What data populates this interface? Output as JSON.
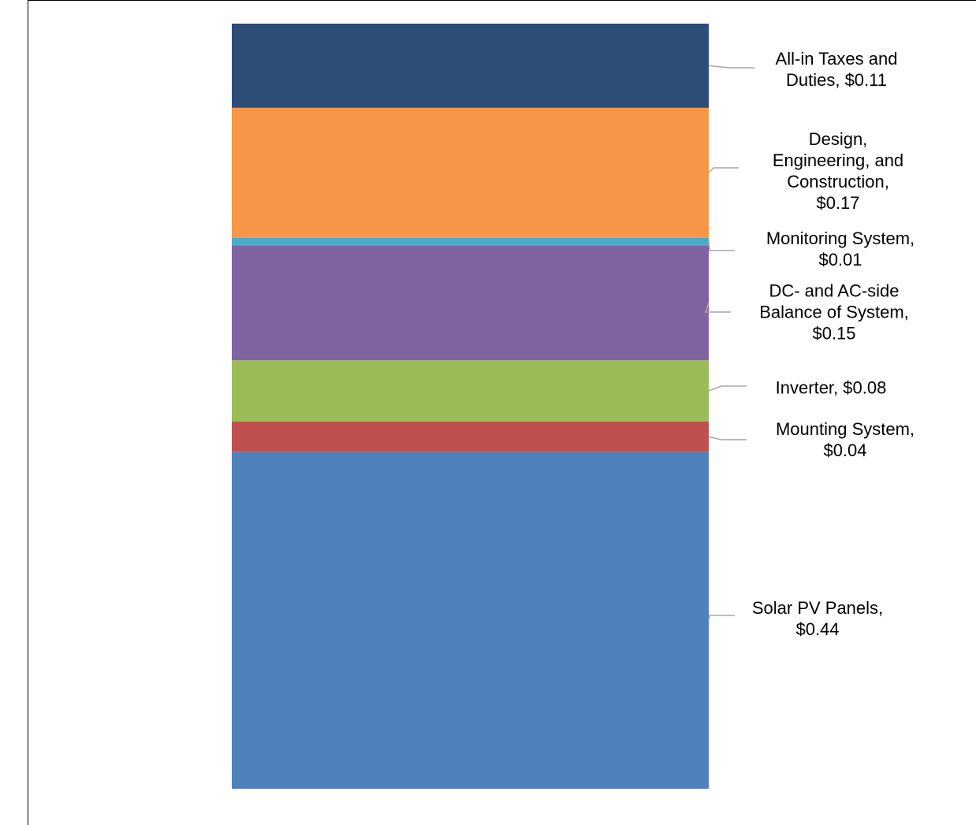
{
  "chart_data": {
    "type": "bar",
    "stacked": true,
    "title": "",
    "xlabel": "",
    "ylabel": "",
    "categories": [
      ""
    ],
    "series": [
      {
        "name": "Solar PV Panels",
        "label_lines": [
          "Solar PV Panels,",
          "$0.44"
        ],
        "value": 0.44,
        "color": "#4F81BD"
      },
      {
        "name": "Mounting System",
        "label_lines": [
          "Mounting System,",
          "$0.04"
        ],
        "value": 0.04,
        "color": "#C0504D"
      },
      {
        "name": "Inverter",
        "label_lines": [
          "Inverter,  $0.08"
        ],
        "value": 0.08,
        "color": "#9BBB59"
      },
      {
        "name": "DC- and AC-side Balance of System",
        "label_lines": [
          "DC- and AC-side",
          "Balance of System,",
          "$0.15"
        ],
        "value": 0.15,
        "color": "#8064A2"
      },
      {
        "name": "Monitoring System",
        "label_lines": [
          "Monitoring System,",
          "$0.01"
        ],
        "value": 0.01,
        "color": "#4BACC6"
      },
      {
        "name": "Design, Engineering, and Construction",
        "label_lines": [
          "Design,",
          "Engineering, and",
          "Construction,",
          "$0.17"
        ],
        "value": 0.17,
        "color": "#F79646"
      },
      {
        "name": "All-in Taxes and Duties",
        "label_lines": [
          "All-in Taxes and",
          "Duties,  $0.11"
        ],
        "value": 0.11,
        "color": "#2C4D75"
      }
    ],
    "legend": "none",
    "grid": false,
    "leader_line_color": "#A6A6A6"
  }
}
